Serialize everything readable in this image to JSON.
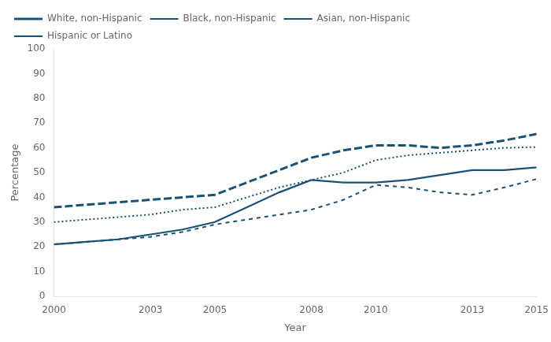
{
  "chart_data": {
    "type": "line",
    "x": [
      2000,
      2001,
      2002,
      2003,
      2004,
      2005,
      2006,
      2007,
      2008,
      2009,
      2010,
      2011,
      2012,
      2013,
      2014,
      2015
    ],
    "series": [
      {
        "name": "White, non-Hispanic",
        "line_style": "long_dashed",
        "values": [
          36,
          37,
          38,
          39,
          40,
          41,
          46,
          51,
          56,
          59,
          61,
          61,
          60,
          61,
          63,
          65.6
        ]
      },
      {
        "name": "Black, non-Hispanic",
        "line_style": "dotted",
        "values": [
          30,
          31,
          32,
          33,
          35,
          36,
          40,
          44,
          47,
          50,
          55,
          57,
          58,
          59,
          60,
          60.3
        ]
      },
      {
        "name": "Asian, non-Hispanic",
        "line_style": "solid",
        "values": [
          21,
          22,
          23,
          25,
          27,
          30,
          36,
          42,
          47,
          46,
          46,
          47,
          49,
          51,
          51,
          52.1
        ]
      },
      {
        "name": "Hispanic or Latino",
        "line_style": "dashed",
        "values": [
          21,
          22,
          23,
          24,
          26,
          29,
          31,
          33,
          35,
          39,
          45,
          44,
          42,
          41,
          44,
          47.4
        ]
      }
    ],
    "color": "#1a5276",
    "xlabel": "Year",
    "ylabel": "Percentage",
    "xlim": [
      2000,
      2015
    ],
    "xticks": [
      2000,
      2003,
      2005,
      2008,
      2010,
      2013,
      2015
    ],
    "ylim": [
      0,
      100
    ],
    "yticks": [
      0,
      10,
      20,
      30,
      40,
      50,
      60,
      70,
      80,
      90,
      100
    ],
    "grid": false,
    "legend": "upper left"
  }
}
